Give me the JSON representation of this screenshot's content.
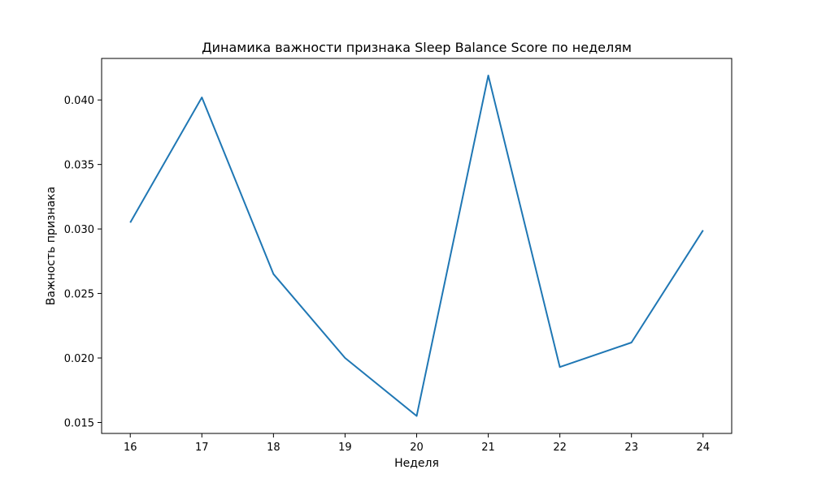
{
  "chart_data": {
    "type": "line",
    "title": "Динамика важности признака Sleep Balance Score по неделям",
    "xlabel": "Неделя",
    "ylabel": "Важность признака",
    "x": [
      16,
      17,
      18,
      19,
      20,
      21,
      22,
      23,
      24
    ],
    "series": [
      {
        "values": [
          0.0305,
          0.0402,
          0.0265,
          0.02,
          0.0155,
          0.0419,
          0.0193,
          0.0212,
          0.0299
        ]
      }
    ],
    "xticks": [
      "16",
      "17",
      "18",
      "19",
      "20",
      "21",
      "22",
      "23",
      "24"
    ],
    "yticks": [
      "0.015",
      "0.020",
      "0.025",
      "0.030",
      "0.035",
      "0.040"
    ],
    "xlim": [
      15.6,
      24.4
    ],
    "ylim": [
      0.01415,
      0.04322
    ],
    "grid": false,
    "line_color": "#1f77b4"
  }
}
